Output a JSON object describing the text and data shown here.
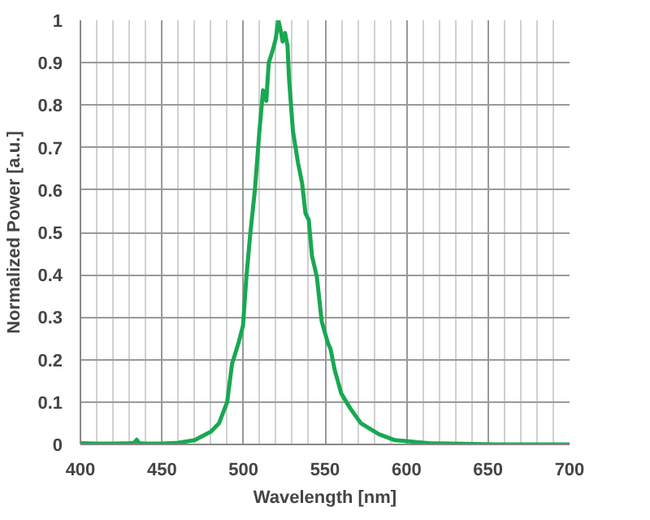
{
  "chart_data": {
    "type": "line",
    "xlabel": "Wavelength [nm]",
    "ylabel": "Normalized Power [a.u.]",
    "series": [
      {
        "color": "#19a852",
        "x": [
          400,
          410,
          420,
          430,
          433,
          434.5,
          436,
          440,
          450,
          460,
          470,
          480,
          485,
          490,
          493,
          497,
          499.7,
          501.7,
          504,
          507,
          509.7,
          512,
          514,
          515.5,
          518,
          519.7,
          521.4,
          522.8,
          524,
          525.5,
          527,
          528,
          530.3,
          533.4,
          536,
          538,
          540,
          542,
          545,
          548,
          551.7,
          553.4,
          556,
          560,
          565.5,
          572,
          583,
          593,
          614,
          655,
          700
        ],
        "values": [
          0.003,
          0.002,
          0.002,
          0.003,
          0.004,
          0.011,
          0.003,
          0.002,
          0.002,
          0.004,
          0.01,
          0.03,
          0.05,
          0.1,
          0.19,
          0.24,
          0.28,
          0.39,
          0.49,
          0.6,
          0.735,
          0.835,
          0.81,
          0.9,
          0.93,
          0.955,
          1.0,
          0.976,
          0.95,
          0.97,
          0.94,
          0.86,
          0.74,
          0.665,
          0.615,
          0.545,
          0.53,
          0.445,
          0.395,
          0.29,
          0.24,
          0.225,
          0.175,
          0.12,
          0.085,
          0.05,
          0.024,
          0.01,
          0.003,
          0.0,
          0.0
        ]
      }
    ],
    "xlim": [
      400,
      700
    ],
    "ylim": [
      0,
      1
    ],
    "xticks": [
      400,
      450,
      500,
      550,
      600,
      650,
      700
    ],
    "yticks": [
      0,
      0.1,
      0.2,
      0.3,
      0.4,
      0.5,
      0.6,
      0.7,
      0.8,
      0.9,
      1
    ],
    "grid": true,
    "marker": "none",
    "line_style": "solid"
  }
}
